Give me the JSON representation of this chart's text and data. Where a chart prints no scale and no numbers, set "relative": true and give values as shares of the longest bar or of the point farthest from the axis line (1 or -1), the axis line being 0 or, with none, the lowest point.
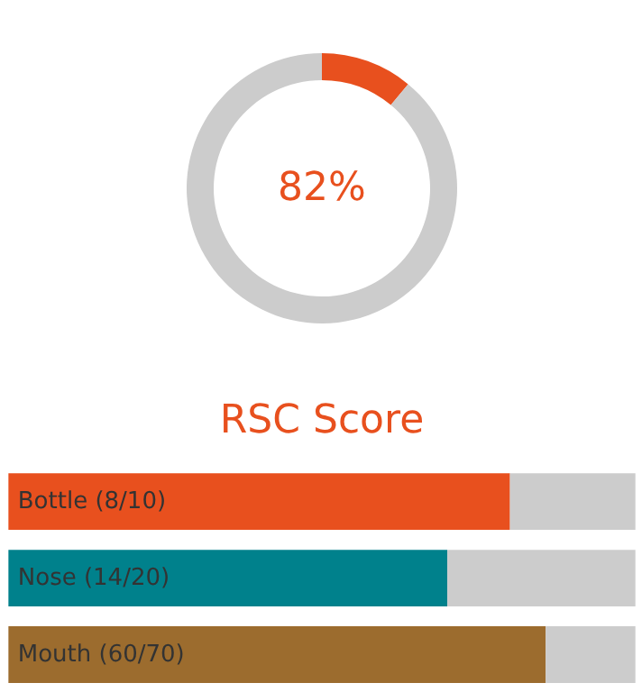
{
  "chart_data": [
    {
      "type": "donut",
      "categories": [
        null,
        null
      ],
      "values": [
        11,
        89
      ],
      "colors": [
        "#e8501e",
        "#cccccc"
      ],
      "annotations": [
        "82%"
      ]
    },
    {
      "type": "bar",
      "title": "RSC Score",
      "orientation": "horizontal",
      "stacked": true,
      "relative": true,
      "categories": [
        "Bottle (8/10)",
        "Nose (14/20)",
        "Mouth (60/70)"
      ],
      "series": [
        {
          "colors": [
            "#e8501e",
            "#00818c",
            "#9c6c2e"
          ],
          "values": [
            0.8,
            0.7,
            0.857
          ]
        },
        {
          "color": "#cccccc",
          "values": [
            0.2,
            0.3,
            0.143
          ]
        }
      ]
    }
  ]
}
